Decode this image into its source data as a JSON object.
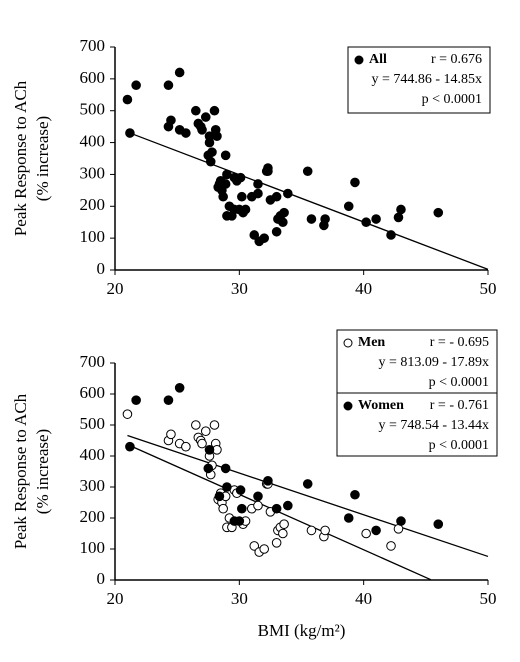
{
  "chart_data": [
    {
      "type": "scatter",
      "ylabel": [
        "Peak Response to ACh",
        "(%  increase)"
      ],
      "xlim": [
        20,
        50
      ],
      "ylim": [
        0,
        700
      ],
      "xticks": [
        20,
        30,
        40,
        50
      ],
      "yticks": [
        0,
        100,
        200,
        300,
        400,
        500,
        600,
        700
      ],
      "series": [
        {
          "name": "All",
          "marker": "filled",
          "color": "#000",
          "r": "r = 0.676",
          "equation": "y = 744.86 - 14.85x",
          "p": "p < 0.0001",
          "x": [
            21,
            24.3,
            24.5,
            25.2,
            25.7,
            26.5,
            26.7,
            26.9,
            27,
            27.3,
            27.6,
            27.7,
            27.8,
            28,
            28.1,
            28.2,
            28.3,
            28.5,
            28.6,
            28.7,
            28.9,
            29,
            29.2,
            29.4,
            29.6,
            29.8,
            30.3,
            30.5,
            31,
            31.2,
            31.5,
            31.6,
            32,
            32.2,
            32.3,
            32.5,
            33,
            33.1,
            33.3,
            33.5,
            33.6,
            35.8,
            36.8,
            36.9,
            40.2,
            42.2,
            42.8,
            21.2,
            21.7,
            24.3,
            25.2,
            27.6,
            27.5,
            28.4,
            28.9,
            29,
            30.1,
            30,
            30.2,
            31.5,
            32.3,
            33,
            33.9,
            35.5,
            38.8,
            39.3,
            41,
            43,
            46,
            29.6
          ],
          "values": [
            535,
            450,
            470,
            440,
            430,
            500,
            460,
            450,
            440,
            480,
            400,
            340,
            370,
            500,
            440,
            420,
            260,
            280,
            250,
            230,
            270,
            170,
            200,
            170,
            290,
            280,
            180,
            190,
            230,
            110,
            240,
            90,
            100,
            310,
            310,
            220,
            120,
            160,
            170,
            150,
            180,
            160,
            140,
            160,
            150,
            110,
            165,
            430,
            580,
            580,
            620,
            420,
            360,
            270,
            360,
            300,
            290,
            190,
            230,
            270,
            320,
            230,
            240,
            310,
            200,
            275,
            160,
            190,
            180,
            190
          ],
          "fit": {
            "x": [
              21,
              50
            ],
            "values": [
              433,
              2
            ]
          }
        }
      ]
    },
    {
      "type": "scatter",
      "ylabel": [
        "Peak Response to ACh",
        "(%  increase)"
      ],
      "xlabel": "BMI (kg/m²)",
      "xlim": [
        20,
        50
      ],
      "ylim": [
        0,
        700
      ],
      "xticks": [
        20,
        30,
        40,
        50
      ],
      "yticks": [
        0,
        100,
        200,
        300,
        400,
        500,
        600,
        700
      ],
      "series": [
        {
          "name": "Men",
          "marker": "open",
          "color": "#000",
          "r": "r = - 0.695",
          "equation": "y = 813.09 - 17.89x",
          "p": "p < 0.0001",
          "x": [
            21,
            24.3,
            24.5,
            25.2,
            25.7,
            26.5,
            26.7,
            26.9,
            27,
            27.3,
            27.6,
            27.7,
            27.8,
            28,
            28.1,
            28.2,
            28.3,
            28.5,
            28.6,
            28.7,
            28.9,
            29,
            29.2,
            29.4,
            29.6,
            29.8,
            30.3,
            30.5,
            31,
            31.2,
            31.5,
            31.6,
            32,
            32.2,
            32.3,
            32.5,
            33,
            33.1,
            33.3,
            33.5,
            33.6,
            35.8,
            36.8,
            36.9,
            40.2,
            42.2,
            42.8
          ],
          "values": [
            535,
            450,
            470,
            440,
            430,
            500,
            460,
            450,
            440,
            480,
            400,
            340,
            370,
            500,
            440,
            420,
            260,
            280,
            250,
            230,
            270,
            170,
            200,
            170,
            290,
            280,
            180,
            190,
            230,
            110,
            240,
            90,
            100,
            310,
            310,
            220,
            120,
            160,
            170,
            150,
            180,
            160,
            140,
            160,
            150,
            110,
            165
          ],
          "fit": {
            "x": [
              21,
              45.4
            ],
            "values": [
              437,
              1
            ]
          }
        },
        {
          "name": "Women",
          "marker": "filled",
          "color": "#000",
          "r": "r = - 0.761",
          "equation": "y = 748.54 - 13.44x",
          "p": "p < 0.0001",
          "x": [
            21.2,
            21.7,
            24.3,
            25.2,
            27.6,
            27.5,
            28.4,
            28.9,
            29,
            30.1,
            30,
            30.2,
            31.5,
            32.3,
            33,
            33.9,
            35.5,
            38.8,
            39.3,
            41,
            43,
            46,
            29.6
          ],
          "values": [
            430,
            580,
            580,
            620,
            420,
            360,
            270,
            360,
            300,
            290,
            190,
            230,
            270,
            320,
            230,
            240,
            310,
            200,
            275,
            160,
            190,
            180,
            190
          ],
          "fit": {
            "x": [
              21,
              50
            ],
            "values": [
              466,
              76
            ]
          }
        }
      ]
    }
  ]
}
